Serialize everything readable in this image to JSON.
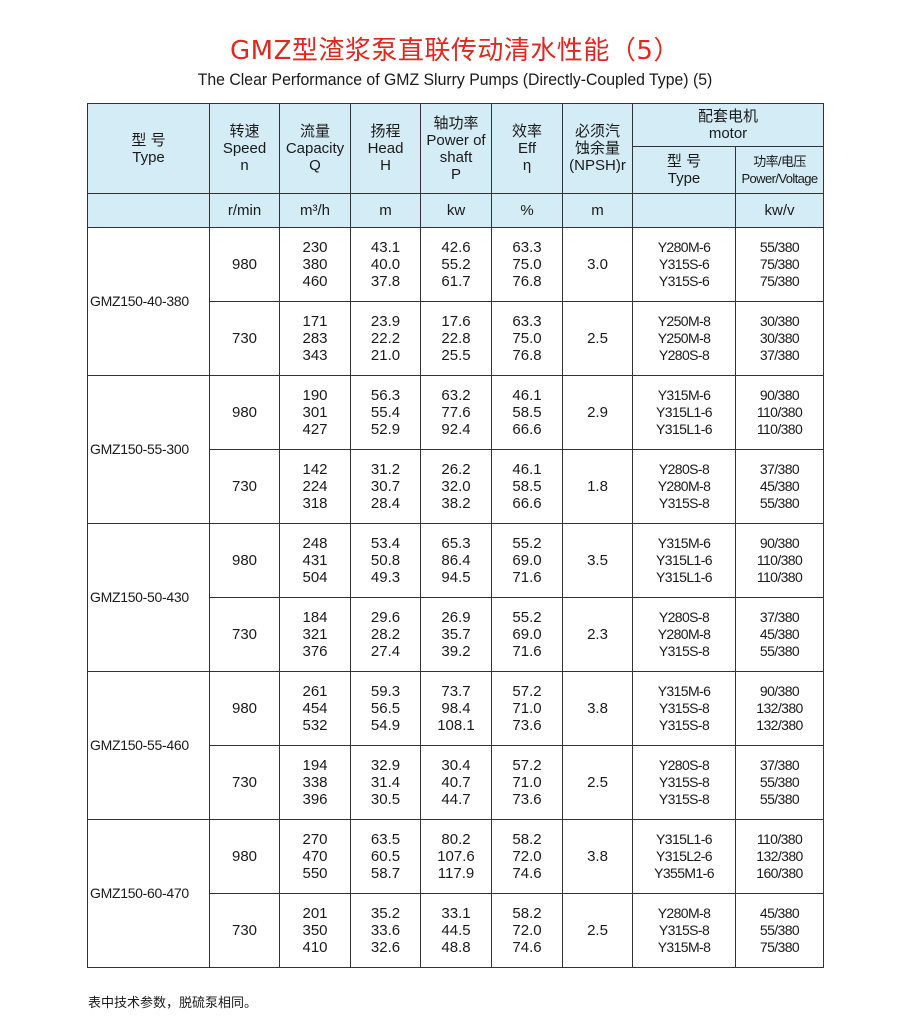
{
  "title": "GMZ型渣浆泵直联传动清水性能（5）",
  "subtitle": "The Clear Performance of GMZ Slurry Pumps (Directly-Coupled Type) (5)",
  "headers": {
    "type": "型  号\nType",
    "speed": "转速\nSpeed\nn",
    "capacity": "流量\nCapacity\nQ",
    "head": "扬程\nHead\nH",
    "power": "轴功率\nPower of\nshaft\nP",
    "eff": "效率\nEff\nη",
    "npsh": "必须汽\n蚀余量\n(NPSH)r",
    "motor": "配套电机\nmotor",
    "motor_type": "型  号\nType",
    "motor_pv": "功率/电压\nPower/Voltage"
  },
  "units": {
    "speed": "r/min",
    "capacity": "m³/h",
    "head": "m",
    "power": "kw",
    "eff": "%",
    "npsh": "m",
    "motor_type": "",
    "motor_pv": "kw/v"
  },
  "models": [
    {
      "type": "GMZ150-40-380",
      "rows": [
        {
          "speed": "980",
          "q": [
            "230",
            "380",
            "460"
          ],
          "h": [
            "43.1",
            "40.0",
            "37.8"
          ],
          "p": [
            "42.6",
            "55.2",
            "61.7"
          ],
          "eff": [
            "63.3",
            "75.0",
            "76.8"
          ],
          "npsh": "3.0",
          "motor": [
            "Y280M-6",
            "Y315S-6",
            "Y315S-6"
          ],
          "pv": [
            "55/380",
            "75/380",
            "75/380"
          ]
        },
        {
          "speed": "730",
          "q": [
            "171",
            "283",
            "343"
          ],
          "h": [
            "23.9",
            "22.2",
            "21.0"
          ],
          "p": [
            "17.6",
            "22.8",
            "25.5"
          ],
          "eff": [
            "63.3",
            "75.0",
            "76.8"
          ],
          "npsh": "2.5",
          "motor": [
            "Y250M-8",
            "Y250M-8",
            "Y280S-8"
          ],
          "pv": [
            "30/380",
            "30/380",
            "37/380"
          ]
        }
      ]
    },
    {
      "type": "GMZ150-55-300",
      "rows": [
        {
          "speed": "980",
          "q": [
            "190",
            "301",
            "427"
          ],
          "h": [
            "56.3",
            "55.4",
            "52.9"
          ],
          "p": [
            "63.2",
            "77.6",
            "92.4"
          ],
          "eff": [
            "46.1",
            "58.5",
            "66.6"
          ],
          "npsh": "2.9",
          "motor": [
            "Y315M-6",
            "Y315L1-6",
            "Y315L1-6"
          ],
          "pv": [
            "90/380",
            "110/380",
            "110/380"
          ]
        },
        {
          "speed": "730",
          "q": [
            "142",
            "224",
            "318"
          ],
          "h": [
            "31.2",
            "30.7",
            "28.4"
          ],
          "p": [
            "26.2",
            "32.0",
            "38.2"
          ],
          "eff": [
            "46.1",
            "58.5",
            "66.6"
          ],
          "npsh": "1.8",
          "motor": [
            "Y280S-8",
            "Y280M-8",
            "Y315S-8"
          ],
          "pv": [
            "37/380",
            "45/380",
            "55/380"
          ]
        }
      ]
    },
    {
      "type": "GMZ150-50-430",
      "rows": [
        {
          "speed": "980",
          "q": [
            "248",
            "431",
            "504"
          ],
          "h": [
            "53.4",
            "50.8",
            "49.3"
          ],
          "p": [
            "65.3",
            "86.4",
            "94.5"
          ],
          "eff": [
            "55.2",
            "69.0",
            "71.6"
          ],
          "npsh": "3.5",
          "motor": [
            "Y315M-6",
            "Y315L1-6",
            "Y315L1-6"
          ],
          "pv": [
            "90/380",
            "110/380",
            "110/380"
          ]
        },
        {
          "speed": "730",
          "q": [
            "184",
            "321",
            "376"
          ],
          "h": [
            "29.6",
            "28.2",
            "27.4"
          ],
          "p": [
            "26.9",
            "35.7",
            "39.2"
          ],
          "eff": [
            "55.2",
            "69.0",
            "71.6"
          ],
          "npsh": "2.3",
          "motor": [
            "Y280S-8",
            "Y280M-8",
            "Y315S-8"
          ],
          "pv": [
            "37/380",
            "45/380",
            "55/380"
          ]
        }
      ]
    },
    {
      "type": "GMZ150-55-460",
      "rows": [
        {
          "speed": "980",
          "q": [
            "261",
            "454",
            "532"
          ],
          "h": [
            "59.3",
            "56.5",
            "54.9"
          ],
          "p": [
            "73.7",
            "98.4",
            "108.1"
          ],
          "eff": [
            "57.2",
            "71.0",
            "73.6"
          ],
          "npsh": "3.8",
          "motor": [
            "Y315M-6",
            "Y315S-8",
            "Y315S-8"
          ],
          "pv": [
            "90/380",
            "132/380",
            "132/380"
          ]
        },
        {
          "speed": "730",
          "q": [
            "194",
            "338",
            "396"
          ],
          "h": [
            "32.9",
            "31.4",
            "30.5"
          ],
          "p": [
            "30.4",
            "40.7",
            "44.7"
          ],
          "eff": [
            "57.2",
            "71.0",
            "73.6"
          ],
          "npsh": "2.5",
          "motor": [
            "Y280S-8",
            "Y315S-8",
            "Y315S-8"
          ],
          "pv": [
            "37/380",
            "55/380",
            "55/380"
          ]
        }
      ]
    },
    {
      "type": "GMZ150-60-470",
      "rows": [
        {
          "speed": "980",
          "q": [
            "270",
            "470",
            "550"
          ],
          "h": [
            "63.5",
            "60.5",
            "58.7"
          ],
          "p": [
            "80.2",
            "107.6",
            "117.9"
          ],
          "eff": [
            "58.2",
            "72.0",
            "74.6"
          ],
          "npsh": "3.8",
          "motor": [
            "Y315L1-6",
            "Y315L2-6",
            "Y355M1-6"
          ],
          "pv": [
            "110/380",
            "132/380",
            "160/380"
          ]
        },
        {
          "speed": "730",
          "q": [
            "201",
            "350",
            "410"
          ],
          "h": [
            "35.2",
            "33.6",
            "32.6"
          ],
          "p": [
            "33.1",
            "44.5",
            "48.8"
          ],
          "eff": [
            "58.2",
            "72.0",
            "74.6"
          ],
          "npsh": "2.5",
          "motor": [
            "Y280M-8",
            "Y315S-8",
            "Y315M-8"
          ],
          "pv": [
            "45/380",
            "55/380",
            "75/380"
          ]
        }
      ]
    }
  ],
  "note": "表中技术参数，脱硫泵相同。",
  "colors": {
    "title": "#e0281e",
    "header_bg": "#d4ecf5",
    "border": "#333333"
  }
}
